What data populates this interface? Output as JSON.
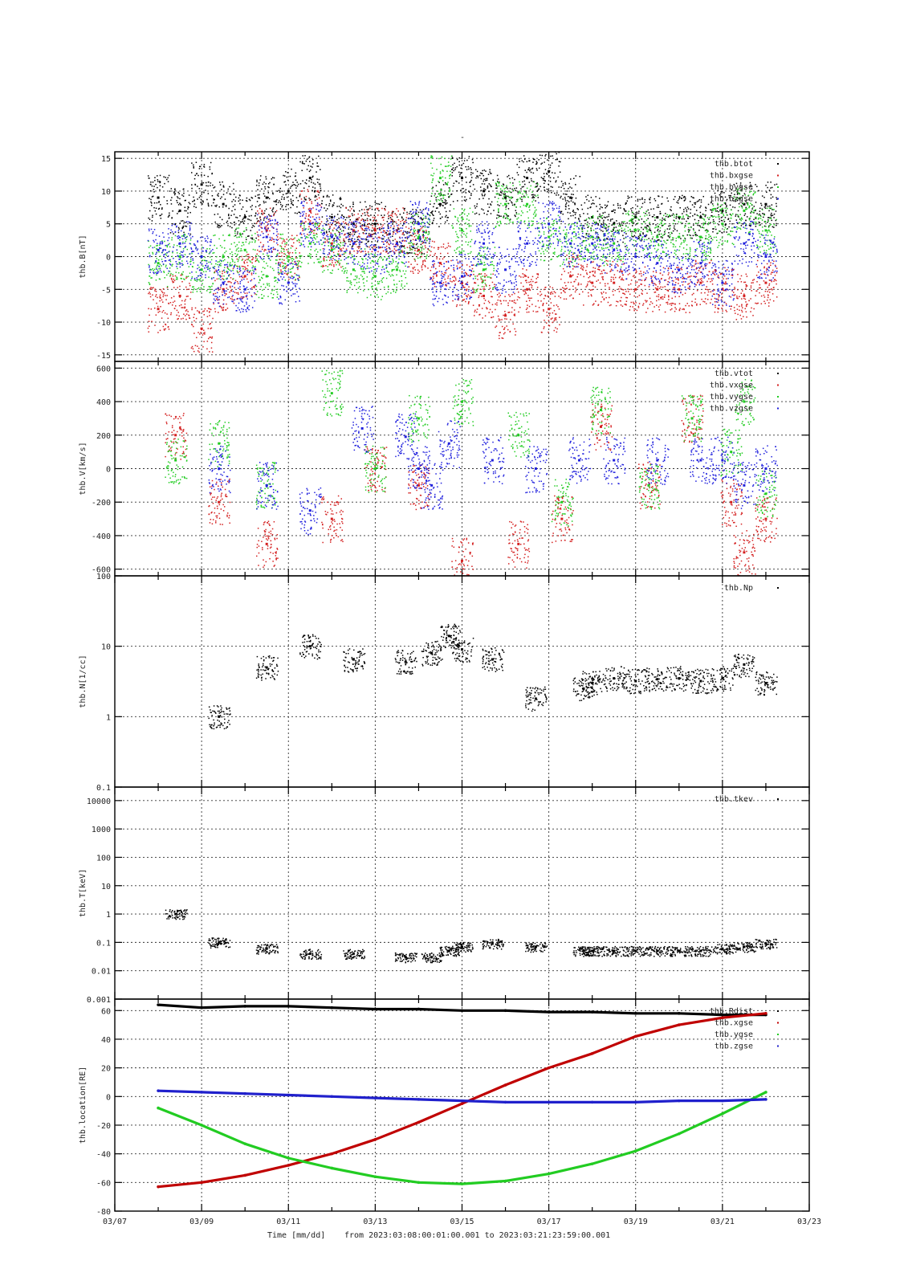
{
  "figure": {
    "title": "-",
    "x_ticks": [
      "03/07",
      "03/09",
      "03/11",
      "03/13",
      "03/15",
      "03/17",
      "03/19",
      "03/21",
      "03/23"
    ],
    "footer": {
      "xlabel": "Time [mm/dd]",
      "range_text": "from 2023:03:08:00:01:00.001  to  2023:03:21:23:59:00.001"
    }
  },
  "chart_data": [
    {
      "type": "scatter",
      "ylabel": "thb.B[nT]",
      "ylim": [
        -16,
        16
      ],
      "yscale": "linear",
      "yticks": [
        "15",
        "10",
        "5",
        "0",
        "-5",
        "-10",
        "-15"
      ],
      "ytick_values": [
        15,
        10,
        5,
        0,
        -5,
        -10,
        -15
      ],
      "xlim_days": [
        0,
        16
      ],
      "x_reference": "03/07",
      "legend": "top-right",
      "series": [
        {
          "name": "thb.btot",
          "color": "#000000",
          "x": [
            1.0,
            1.5,
            2.0,
            2.5,
            3.0,
            3.5,
            4.0,
            4.5,
            5.0,
            5.5,
            6.0,
            6.5,
            7.0,
            7.5,
            8.0,
            8.5,
            9.0,
            9.5,
            10.0,
            10.5,
            11.0,
            11.5,
            12.0,
            12.5,
            13.0,
            13.5,
            14.0,
            14.5,
            15.0
          ],
          "y": [
            9,
            7,
            11,
            8,
            6,
            9,
            10,
            12,
            6,
            5,
            5,
            4,
            4,
            8,
            12,
            10,
            9,
            12,
            13,
            9,
            6,
            5,
            6,
            6,
            6,
            6,
            7,
            8,
            8
          ]
        },
        {
          "name": "thb.bxgse",
          "color": "#d42020",
          "x": [
            1.0,
            1.5,
            2.0,
            2.5,
            3.0,
            3.5,
            4.0,
            4.5,
            5.0,
            5.5,
            6.0,
            6.5,
            7.0,
            7.5,
            8.0,
            8.5,
            9.0,
            9.5,
            10.0,
            10.5,
            11.0,
            11.5,
            12.0,
            12.5,
            13.0,
            13.5,
            14.0,
            14.5,
            15.0
          ],
          "y": [
            -8,
            -6,
            -11,
            -5,
            -3,
            4,
            0,
            7,
            2,
            4,
            4,
            4,
            1,
            -1,
            -4,
            -6,
            -9,
            -5,
            -8,
            -3,
            -4,
            -4,
            -5,
            -5,
            -5,
            -4,
            -5,
            -6,
            -4
          ]
        },
        {
          "name": "thb.bygse",
          "color": "#22cc22",
          "x": [
            1.0,
            1.5,
            2.0,
            2.5,
            3.0,
            3.5,
            4.0,
            4.5,
            5.0,
            5.5,
            6.0,
            6.5,
            7.0,
            7.5,
            8.0,
            8.5,
            9.0,
            9.5,
            10.0,
            10.5,
            11.0,
            11.5,
            12.0,
            12.5,
            13.0,
            13.5,
            14.0,
            14.5,
            15.0
          ],
          "y": [
            -1,
            0,
            -2,
            0,
            1,
            -3,
            0,
            2,
            1,
            -2,
            -3,
            -2,
            3,
            12,
            4,
            -2,
            8,
            8,
            3,
            2,
            3,
            2,
            4,
            3,
            3,
            3,
            5,
            7,
            4
          ]
        },
        {
          "name": "thb.bzgse",
          "color": "#2020dd",
          "x": [
            1.0,
            1.5,
            2.0,
            2.5,
            3.0,
            3.5,
            4.0,
            4.5,
            5.0,
            5.5,
            6.0,
            6.5,
            7.0,
            7.5,
            8.0,
            8.5,
            9.0,
            9.5,
            10.0,
            10.5,
            11.0,
            11.5,
            12.0,
            12.5,
            13.0,
            13.5,
            14.0,
            14.5,
            15.0
          ],
          "y": [
            1,
            2,
            0,
            -4,
            -5,
            3,
            -4,
            5,
            3,
            2,
            1,
            2,
            5,
            -4,
            -3,
            2,
            -2,
            2,
            5,
            2,
            2,
            1,
            0,
            -1,
            -2,
            -1,
            -4,
            2,
            0
          ]
        }
      ]
    },
    {
      "type": "scatter",
      "ylabel": "thb.V[km/s]",
      "ylim": [
        -640,
        640
      ],
      "yscale": "linear",
      "yticks": [
        "600",
        "400",
        "200",
        "0",
        "-200",
        "-400",
        "-600"
      ],
      "ytick_values": [
        600,
        400,
        200,
        0,
        -200,
        -400,
        -600
      ],
      "xlim_days": [
        0,
        16
      ],
      "x_reference": "03/07",
      "legend": "top-right",
      "series": [
        {
          "name": "thb.vtot",
          "color": "#000000",
          "x": [],
          "y": []
        },
        {
          "name": "thb.vxgse",
          "color": "#d42020",
          "x": [
            1.4,
            2.4,
            3.5,
            5.0,
            6.0,
            7.0,
            8.0,
            9.3,
            10.3,
            11.2,
            12.3,
            13.3,
            14.2,
            14.5,
            15.0
          ],
          "y": [
            200,
            -200,
            -450,
            -300,
            0,
            -100,
            -550,
            -450,
            -300,
            250,
            -100,
            300,
            -200,
            -500,
            -300
          ]
        },
        {
          "name": "thb.vygse",
          "color": "#22cc22",
          "x": [
            1.4,
            2.4,
            3.5,
            5.0,
            6.0,
            7.0,
            8.0,
            9.3,
            10.3,
            11.2,
            12.3,
            13.3,
            14.2,
            14.5,
            15.0
          ],
          "y": [
            50,
            150,
            -100,
            450,
            0,
            300,
            400,
            200,
            -200,
            350,
            -100,
            300,
            100,
            400,
            -150
          ]
        },
        {
          "name": "thb.vzgse",
          "color": "#2020dd",
          "x": [
            2.4,
            3.5,
            4.5,
            5.7,
            6.7,
            7.0,
            7.3,
            7.7,
            8.7,
            9.7,
            10.7,
            11.5,
            12.5,
            13.5,
            14.0,
            14.5,
            15.0
          ],
          "y": [
            0,
            -100,
            -250,
            240,
            190,
            0,
            -100,
            150,
            50,
            0,
            50,
            50,
            50,
            50,
            50,
            -100,
            0
          ]
        }
      ]
    },
    {
      "type": "scatter",
      "ylabel": "thb.N[1/cc]",
      "ylim": [
        0.1,
        100
      ],
      "yscale": "log",
      "yticks": [
        "100",
        "10",
        "1",
        "0.1"
      ],
      "ytick_values": [
        100,
        10,
        1,
        0.1
      ],
      "xlim_days": [
        0,
        16
      ],
      "x_reference": "03/07",
      "legend": "top-right",
      "series": [
        {
          "name": "thb.Np",
          "color": "#000000",
          "x": [
            2.4,
            3.5,
            4.5,
            5.5,
            6.7,
            7.3,
            7.7,
            8.0,
            8.7,
            9.7,
            10.8,
            11.0,
            11.5,
            12.0,
            12.5,
            13.0,
            13.5,
            14.0,
            14.5,
            15.0
          ],
          "y": [
            1.0,
            5.0,
            10.0,
            6.5,
            6.0,
            8.0,
            14.0,
            9.0,
            6.5,
            1.8,
            2.5,
            3.0,
            3.5,
            3.2,
            3.4,
            3.5,
            3.2,
            3.5,
            5.5,
            3.0
          ]
        }
      ]
    },
    {
      "type": "scatter",
      "ylabel": "thb.T[keV]",
      "ylim": [
        0.001,
        30000
      ],
      "yscale": "log",
      "yticks": [
        "10000",
        "1000",
        "100",
        "10",
        "1",
        "0.1",
        "0.01",
        "0.001"
      ],
      "ytick_values": [
        10000,
        1000,
        100,
        10,
        1,
        0.1,
        0.01,
        0.001
      ],
      "xlim_days": [
        0,
        16
      ],
      "x_reference": "03/07",
      "legend": "top-right",
      "series": [
        {
          "name": "thb.tkev",
          "color": "#000000",
          "x": [
            1.4,
            2.4,
            3.5,
            4.5,
            5.5,
            6.7,
            7.3,
            7.7,
            8.0,
            8.7,
            9.7,
            10.8,
            11.0,
            11.5,
            12.0,
            12.5,
            13.0,
            13.5,
            14.0,
            14.5,
            15.0
          ],
          "y": [
            1.0,
            0.1,
            0.06,
            0.04,
            0.04,
            0.03,
            0.03,
            0.05,
            0.07,
            0.09,
            0.07,
            0.05,
            0.05,
            0.05,
            0.05,
            0.05,
            0.05,
            0.05,
            0.06,
            0.07,
            0.09
          ]
        }
      ]
    },
    {
      "type": "line",
      "ylabel": "thb.location[RE]",
      "ylim": [
        -80,
        68
      ],
      "yscale": "linear",
      "yticks": [
        "60",
        "40",
        "20",
        "0",
        "-20",
        "-40",
        "-60",
        "-80"
      ],
      "ytick_values": [
        60,
        40,
        20,
        0,
        -20,
        -40,
        -60,
        -80
      ],
      "xlim_days": [
        0,
        16
      ],
      "x_reference": "03/07",
      "legend": "top-right",
      "series": [
        {
          "name": "thb.Rdist",
          "color": "#000000",
          "x": [
            1,
            2,
            3,
            4,
            5,
            6,
            7,
            8,
            9,
            10,
            11,
            12,
            13,
            14,
            15
          ],
          "y": [
            64,
            62,
            63,
            63,
            62,
            61,
            61,
            60,
            60,
            59,
            59,
            58,
            58,
            57,
            57
          ]
        },
        {
          "name": "thb.xgse",
          "color": "#c00000",
          "x": [
            1,
            2,
            3,
            4,
            5,
            6,
            7,
            8,
            9,
            10,
            11,
            12,
            13,
            14,
            15
          ],
          "y": [
            -63,
            -60,
            -55,
            -48,
            -40,
            -30,
            -18,
            -5,
            8,
            20,
            30,
            42,
            50,
            55,
            58
          ]
        },
        {
          "name": "thb.ygse",
          "color": "#22cc22",
          "x": [
            1,
            2,
            3,
            4,
            5,
            6,
            7,
            8,
            9,
            10,
            11,
            12,
            13,
            14,
            15
          ],
          "y": [
            -8,
            -20,
            -33,
            -43,
            -50,
            -56,
            -60,
            -61,
            -59,
            -54,
            -47,
            -38,
            -26,
            -12,
            3
          ]
        },
        {
          "name": "thb.zgse",
          "color": "#2020cc",
          "x": [
            1,
            2,
            3,
            4,
            5,
            6,
            7,
            8,
            9,
            10,
            11,
            12,
            13,
            14,
            15
          ],
          "y": [
            4,
            3,
            2,
            1,
            0,
            -1,
            -2,
            -3,
            -4,
            -4,
            -4,
            -4,
            -3,
            -3,
            -2
          ]
        }
      ]
    }
  ]
}
